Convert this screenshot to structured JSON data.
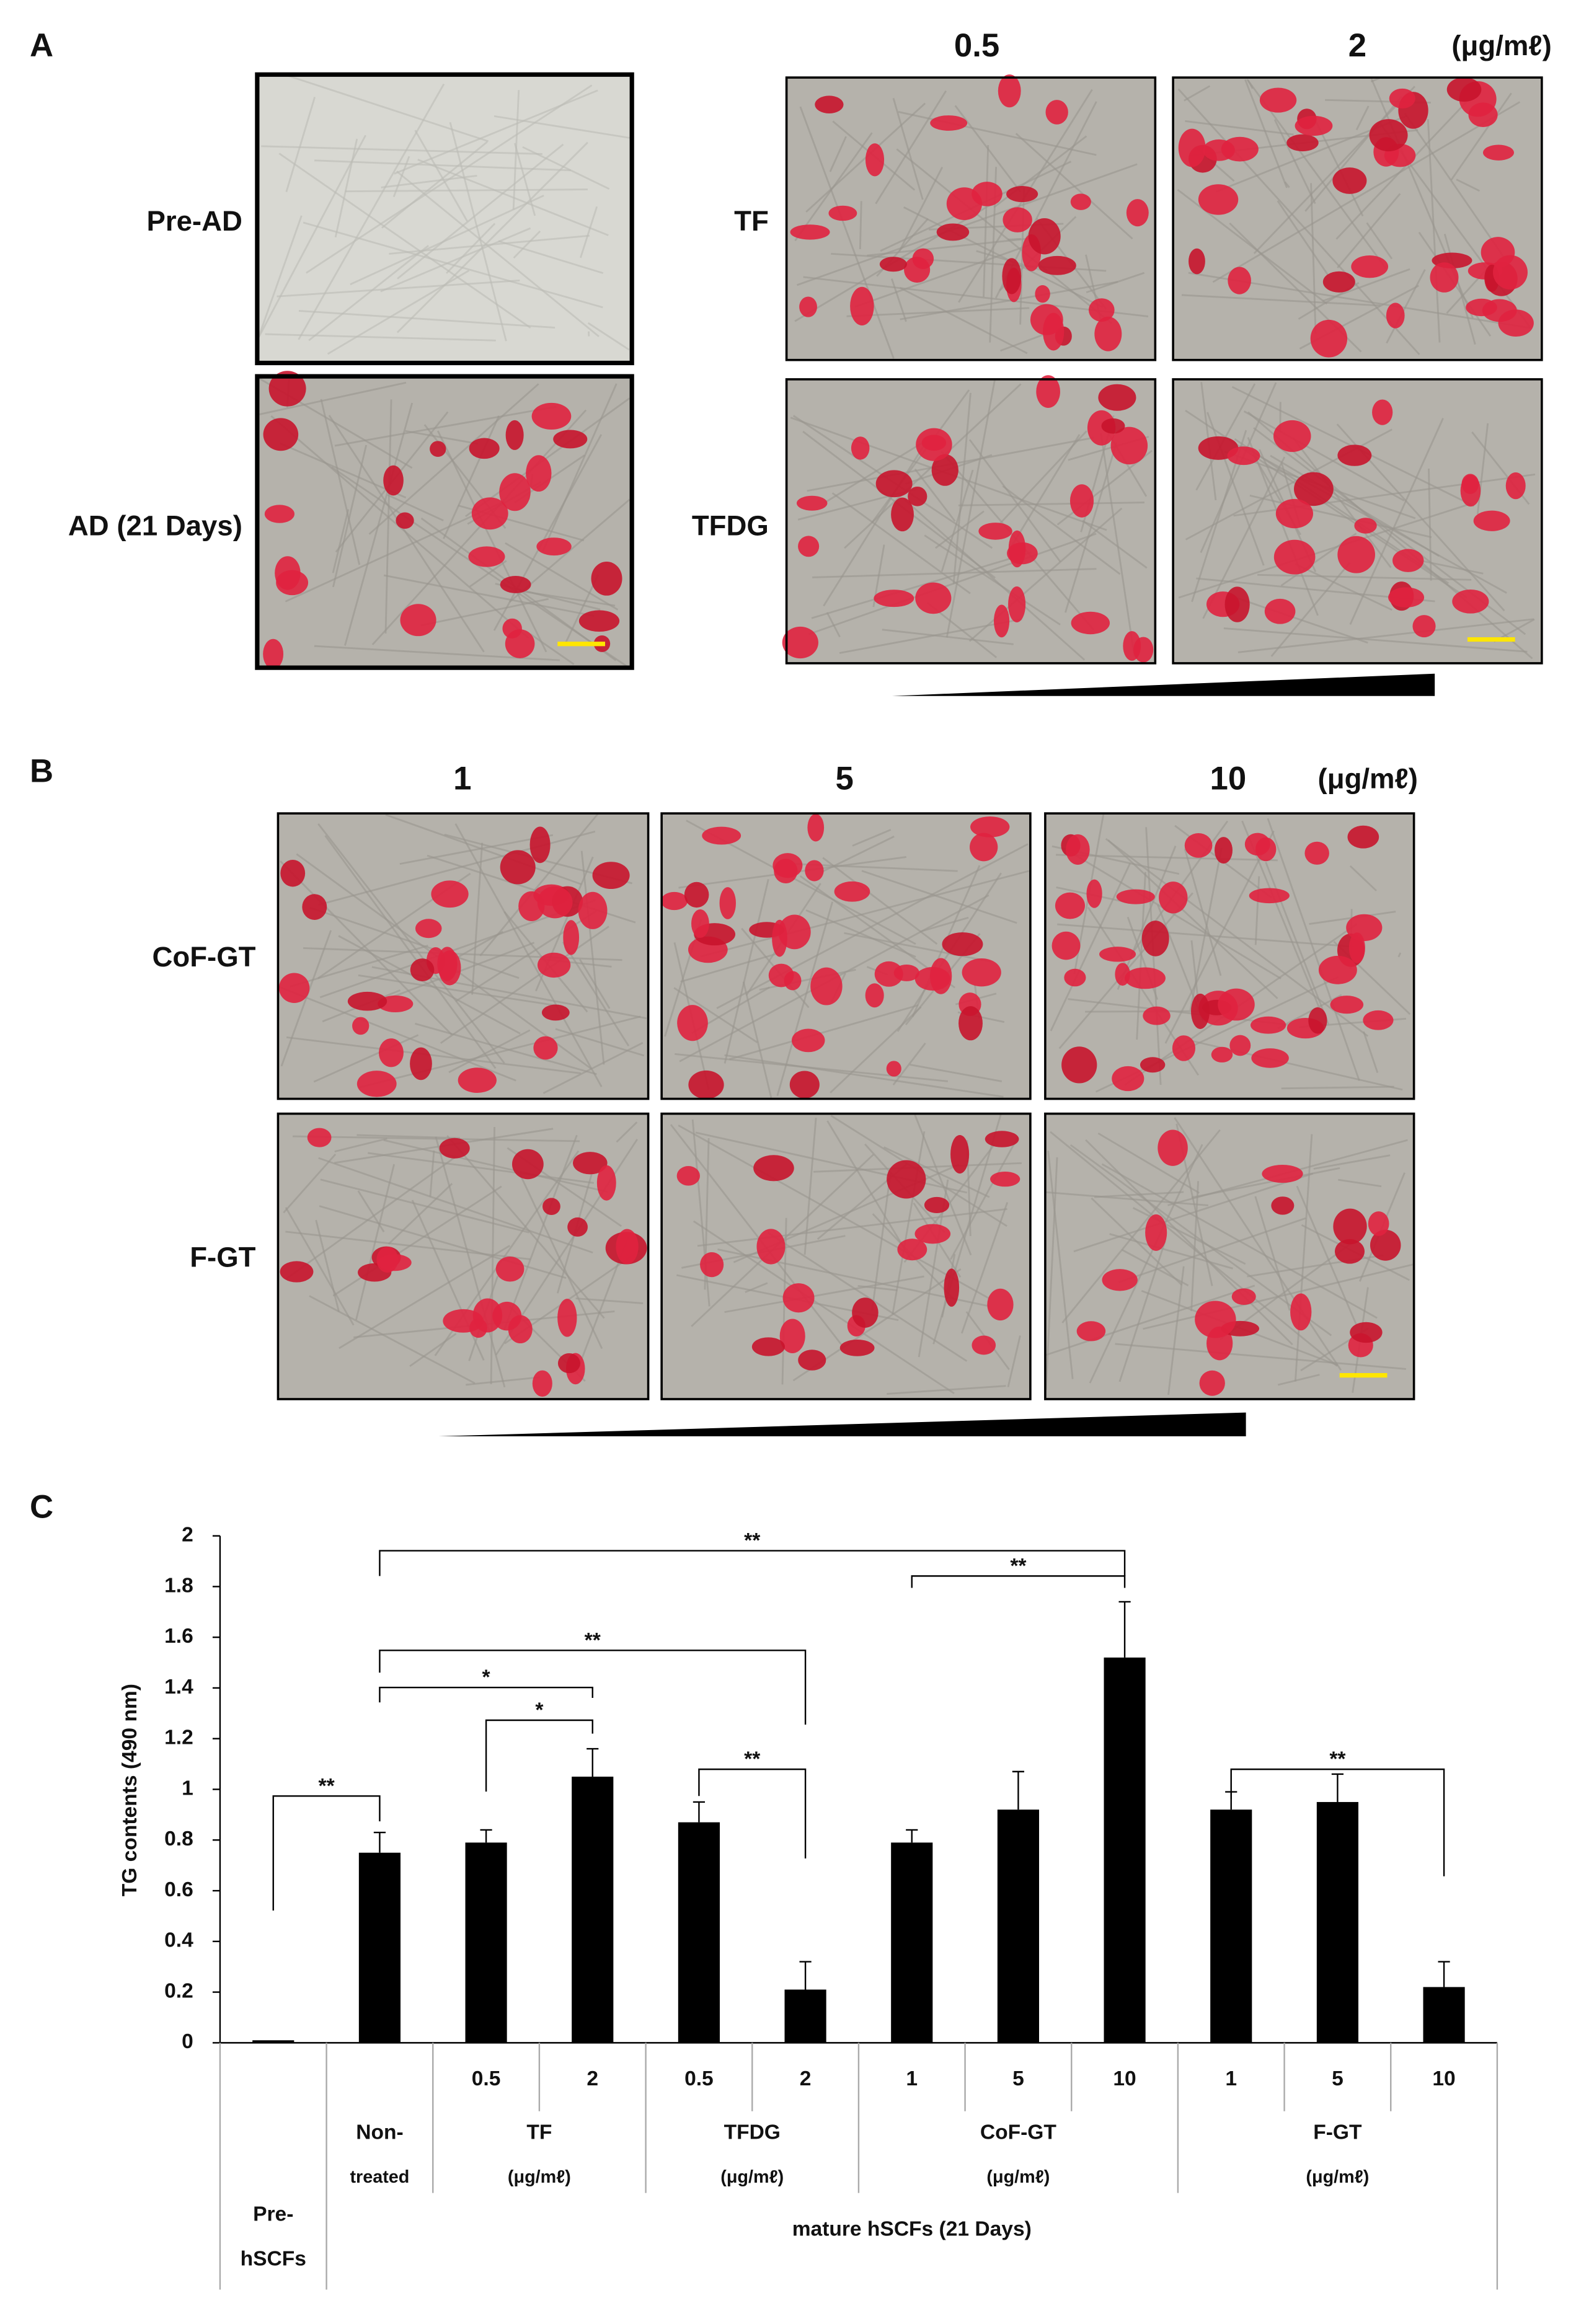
{
  "panel_a": {
    "label": "A",
    "row_labels": [
      "Pre-AD",
      "AD (21 Days)"
    ],
    "treatment_labels": [
      "TF",
      "TFDG"
    ],
    "concentrations": [
      "0.5",
      "2"
    ],
    "unit": "(μg/mℓ)"
  },
  "panel_b": {
    "label": "B",
    "concentrations": [
      "1",
      "5",
      "10"
    ],
    "unit": "(μg/mℓ)",
    "row_labels": [
      "CoF-GT",
      "F-GT"
    ]
  },
  "chart_data": {
    "type": "bar",
    "panel_label": "C",
    "y_label": "TG contents (490 nm)",
    "categories": [
      null,
      null,
      "0.5",
      "2",
      "0.5",
      "2",
      "1",
      "5",
      "10",
      "1",
      "5",
      "10"
    ],
    "values": [
      0.01,
      0.75,
      0.79,
      1.05,
      0.87,
      0.21,
      0.79,
      0.92,
      1.52,
      0.92,
      0.95,
      0.22
    ],
    "errors": [
      0,
      0.08,
      0.05,
      0.11,
      0.08,
      0.11,
      0.05,
      0.15,
      0.22,
      0.07,
      0.11,
      0.1
    ],
    "color": "#000000",
    "ylim": [
      0,
      2
    ],
    "yticks": [
      0,
      0.2,
      0.4,
      0.6,
      0.8,
      1,
      1.2,
      1.4,
      1.6,
      1.8,
      2
    ],
    "groups": [
      {
        "lines": [
          "Pre-",
          "hSCFs"
        ]
      },
      {
        "lines": [
          "Non-",
          "treated"
        ]
      },
      {
        "lines": [
          "TF",
          "(μg/mℓ)"
        ]
      },
      {
        "lines": [
          "TFDG",
          "(μg/mℓ)"
        ]
      },
      {
        "lines": [
          "CoF-GT",
          "(μg/mℓ)"
        ]
      },
      {
        "lines": [
          "F-GT",
          "(μg/mℓ)"
        ]
      }
    ],
    "super_group": "mature hSCFs (21 Days)",
    "significance": [
      "**",
      "**",
      "**",
      "**",
      "*",
      "*",
      "**",
      "**"
    ]
  }
}
